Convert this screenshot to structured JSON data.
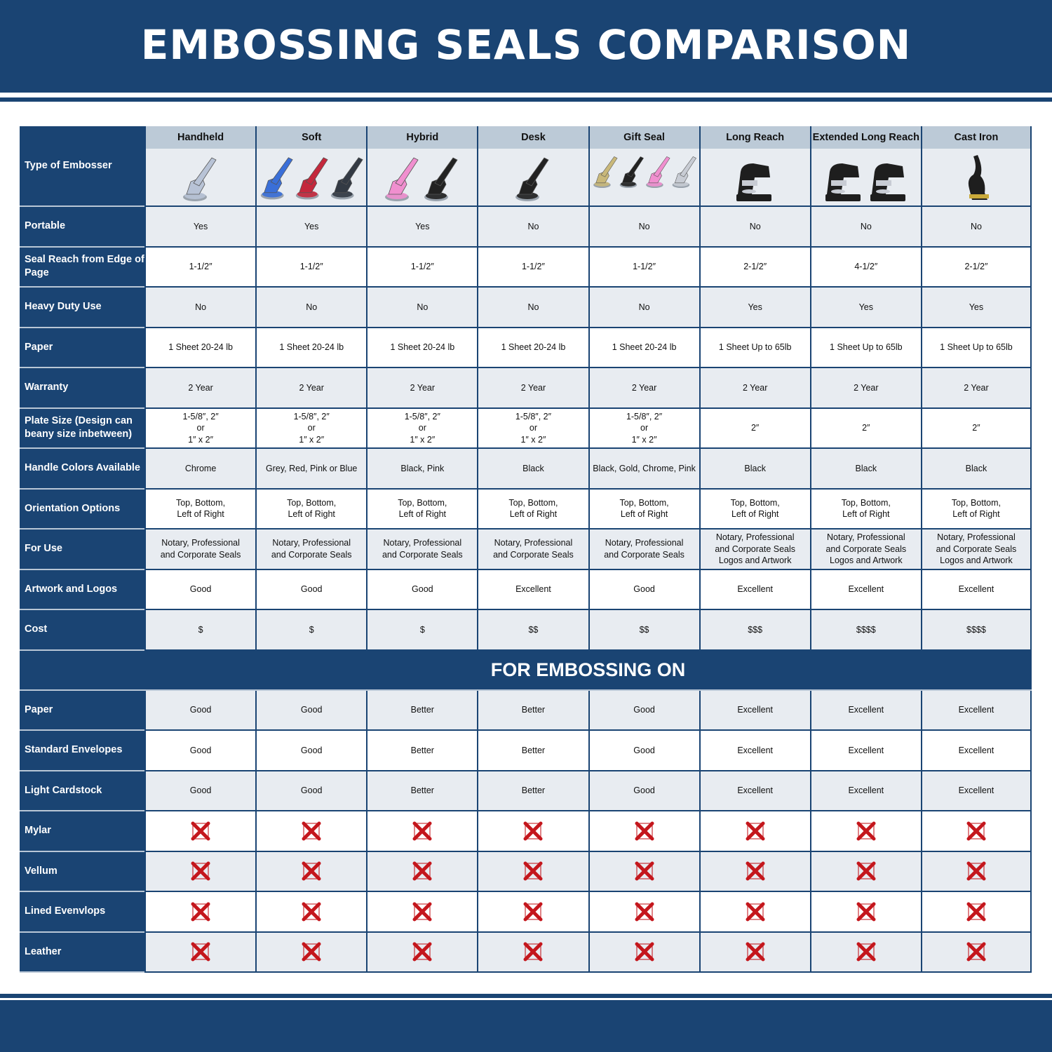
{
  "title": "EMBOSSING SEALS COMPARISON",
  "colors": {
    "brand": "#1a4473",
    "header_cell": "#bccad7",
    "shade": "#e8ecf1",
    "x_mark": "#c4161c"
  },
  "header_label": "Type of Embosser",
  "columns": [
    {
      "name": "Handheld",
      "image": "chrome-handheld-embosser",
      "icon_colors": [
        "#b8c3d6"
      ]
    },
    {
      "name": "Soft",
      "image": "blue-red-black-soft-embossers",
      "icon_colors": [
        "#3a6fd8",
        "#c4283c",
        "#333a44"
      ]
    },
    {
      "name": "Hybrid",
      "image": "pink-black-hybrid-embossers",
      "icon_colors": [
        "#f08fcf",
        "#222222"
      ]
    },
    {
      "name": "Desk",
      "image": "black-desk-embosser",
      "icon_colors": [
        "#222222"
      ]
    },
    {
      "name": "Gift Seal",
      "image": "gold-black-pink-chrome-gift-seals",
      "icon_colors": [
        "#c9b87a",
        "#222222",
        "#f08fcf",
        "#c8ccd4"
      ]
    },
    {
      "name": "Long Reach",
      "image": "black-long-reach-embosser",
      "icon_colors": [
        "#1e1e1e"
      ]
    },
    {
      "name": "Extended Long Reach",
      "image": "two-black-extended-long-reach-embossers",
      "icon_colors": [
        "#1e1e1e",
        "#1e1e1e"
      ]
    },
    {
      "name": "Cast Iron",
      "image": "black-cast-iron-embosser",
      "icon_colors": [
        "#1e1e1e"
      ]
    }
  ],
  "rows": [
    {
      "label": "Portable",
      "values": [
        "Yes",
        "Yes",
        "Yes",
        "No",
        "No",
        "No",
        "No",
        "No"
      ]
    },
    {
      "label": "Seal Reach from Edge of Page",
      "values": [
        "1-1/2″",
        "1-1/2″",
        "1-1/2″",
        "1-1/2″",
        "1-1/2″",
        "2-1/2″",
        "4-1/2″",
        "2-1/2″"
      ]
    },
    {
      "label": "Heavy Duty Use",
      "values": [
        "No",
        "No",
        "No",
        "No",
        "No",
        "Yes",
        "Yes",
        "Yes"
      ]
    },
    {
      "label": "Paper",
      "values": [
        "1 Sheet 20-24 lb",
        "1 Sheet 20-24 lb",
        "1 Sheet 20-24 lb",
        "1 Sheet 20-24 lb",
        "1 Sheet 20-24 lb",
        "1 Sheet Up to 65lb",
        "1 Sheet Up to 65lb",
        "1 Sheet Up to 65lb"
      ]
    },
    {
      "label": "Warranty",
      "values": [
        "2 Year",
        "2 Year",
        "2 Year",
        "2 Year",
        "2 Year",
        "2 Year",
        "2 Year",
        "2 Year"
      ]
    },
    {
      "label": "Plate Size (Design can beany size inbetween)",
      "values": [
        "1-5/8″, 2″\nor\n1″ x 2″",
        "1-5/8″, 2″\nor\n1″ x 2″",
        "1-5/8″, 2″\nor\n1″ x 2″",
        "1-5/8″, 2″\nor\n1″ x 2″",
        "1-5/8″, 2″\nor\n1″ x 2″",
        "2″",
        "2″",
        "2″"
      ]
    },
    {
      "label": "Handle Colors Available",
      "values": [
        "Chrome",
        "Grey, Red, Pink or Blue",
        "Black, Pink",
        "Black",
        "Black, Gold, Chrome, Pink",
        "Black",
        "Black",
        "Black"
      ]
    },
    {
      "label": "Orientation Options",
      "values": [
        "Top, Bottom,\nLeft of Right",
        "Top, Bottom,\nLeft of Right",
        "Top, Bottom,\nLeft of Right",
        "Top, Bottom,\nLeft of Right",
        "Top, Bottom,\nLeft of Right",
        "Top, Bottom,\nLeft of Right",
        "Top, Bottom,\nLeft of Right",
        "Top, Bottom,\nLeft of Right"
      ]
    },
    {
      "label": "For Use",
      "values": [
        "Notary, Professional\nand Corporate Seals",
        "Notary, Professional\nand Corporate Seals",
        "Notary, Professional\nand Corporate Seals",
        "Notary, Professional\nand Corporate Seals",
        "Notary, Professional\nand Corporate Seals",
        "Notary, Professional\nand Corporate Seals\nLogos and Artwork",
        "Notary, Professional\nand Corporate Seals\nLogos and Artwork",
        "Notary, Professional\nand Corporate Seals\nLogos and Artwork"
      ]
    },
    {
      "label": "Artwork and Logos",
      "values": [
        "Good",
        "Good",
        "Good",
        "Excellent",
        "Good",
        "Excellent",
        "Excellent",
        "Excellent"
      ]
    },
    {
      "label": "Cost",
      "values": [
        "$",
        "$",
        "$",
        "$$",
        "$$",
        "$$$",
        "$$$$",
        "$$$$"
      ]
    }
  ],
  "section_title": "FOR EMBOSSING ON",
  "embossing_rows": [
    {
      "label": "Paper",
      "values": [
        "Good",
        "Good",
        "Better",
        "Better",
        "Good",
        "Excellent",
        "Excellent",
        "Excellent"
      ]
    },
    {
      "label": "Standard Envelopes",
      "values": [
        "Good",
        "Good",
        "Better",
        "Better",
        "Good",
        "Excellent",
        "Excellent",
        "Excellent"
      ]
    },
    {
      "label": "Light Cardstock",
      "values": [
        "Good",
        "Good",
        "Better",
        "Better",
        "Good",
        "Excellent",
        "Excellent",
        "Excellent"
      ]
    },
    {
      "label": "Mylar",
      "values": [
        "x-icon",
        "x-icon",
        "x-icon",
        "x-icon",
        "x-icon",
        "x-icon",
        "x-icon",
        "x-icon"
      ]
    },
    {
      "label": "Vellum",
      "values": [
        "x-icon",
        "x-icon",
        "x-icon",
        "x-icon",
        "x-icon",
        "x-icon",
        "x-icon",
        "x-icon"
      ]
    },
    {
      "label": "Lined Evenvlops",
      "values": [
        "x-icon",
        "x-icon",
        "x-icon",
        "x-icon",
        "x-icon",
        "x-icon",
        "x-icon",
        "x-icon"
      ]
    },
    {
      "label": "Leather",
      "values": [
        "x-icon",
        "x-icon",
        "x-icon",
        "x-icon",
        "x-icon",
        "x-icon",
        "x-icon",
        "x-icon"
      ]
    }
  ]
}
